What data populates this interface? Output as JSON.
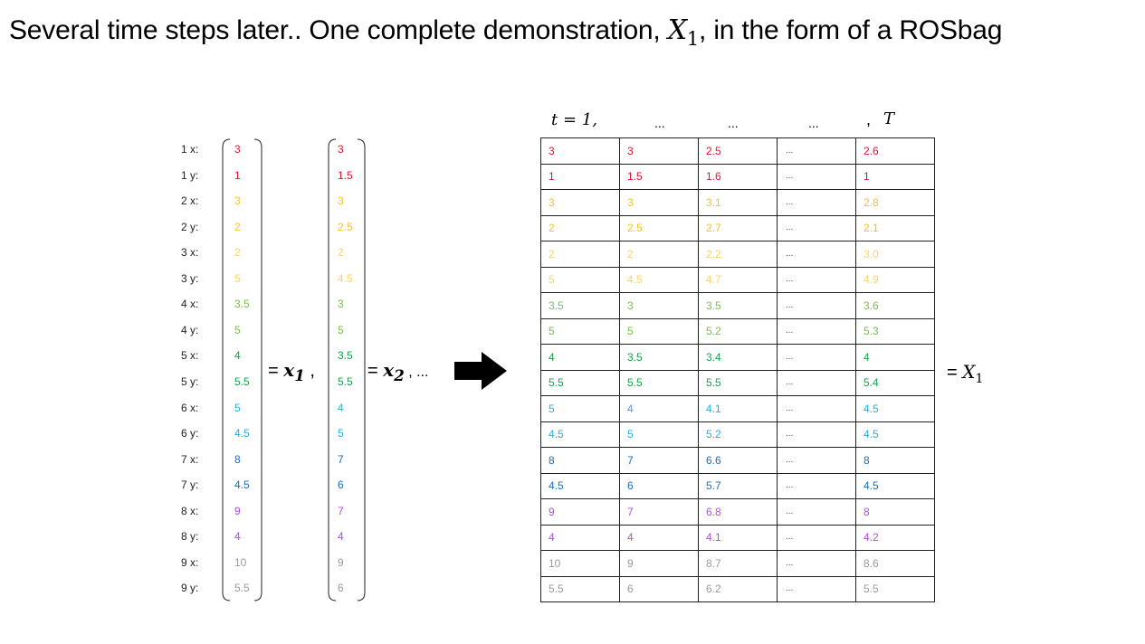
{
  "title": {
    "prefix": "Several time steps later.. One complete demonstration, ",
    "var": "X",
    "sub": "1",
    "suffix": ", in the form of a ROSbag"
  },
  "row_labels": [
    "1 x:",
    "1 y:",
    "2 x:",
    "2 y:",
    "3 x:",
    "3 y:",
    "4 x:",
    "4 y:",
    "5 x:",
    "5 y:",
    "6 x:",
    "6 y:",
    "7 x:",
    "7 y:",
    "8 x:",
    "8 y:",
    "9 x:",
    "9 y:"
  ],
  "row_colors": [
    "#e8112d",
    "#e8112d",
    "#f5c122",
    "#f5c122",
    "#f9d26a",
    "#f9d26a",
    "#7bbf48",
    "#7bbf48",
    "#17a34a",
    "#17a34a",
    "#1eb2e6",
    "#1eb2e6",
    "#1c6db5",
    "#1c6db5",
    "#b44ce8",
    "#b44ce8",
    "#9a9a9a",
    "#9a9a9a"
  ],
  "vector1": [
    "3",
    "1",
    "3",
    "2",
    "2",
    "5",
    "3.5",
    "5",
    "4",
    "5.5",
    "5",
    "4.5",
    "8",
    "4.5",
    "9",
    "4",
    "10",
    "5.5"
  ],
  "vector2": [
    "3",
    "1.5",
    "3",
    "2.5",
    "2",
    "4.5",
    "3",
    "5",
    "3.5",
    "5.5",
    "4",
    "5",
    "7",
    "6",
    "7",
    "4",
    "9",
    "6"
  ],
  "eq1": {
    "eq": "= ",
    "var": "x",
    "sub": "1",
    "tail": " ,"
  },
  "eq2": {
    "eq": "= ",
    "var": "x",
    "sub": "2",
    "tail": " , ..."
  },
  "eq_final": {
    "eq": "= ",
    "var": "X",
    "sub": "1"
  },
  "time_header": {
    "t_label": "t = 1,",
    "dots": "...",
    "comma": ",",
    "T": "T"
  },
  "matrix": [
    [
      "3",
      "3",
      "2.5",
      "...",
      "2.6"
    ],
    [
      "1",
      "1.5",
      "1.6",
      "...",
      "1"
    ],
    [
      "3",
      "3",
      "3.1",
      "...",
      "2.8"
    ],
    [
      "2",
      "2.5",
      "2.7",
      "...",
      "2.1"
    ],
    [
      "2",
      "2",
      "2.2",
      "...",
      "3.0"
    ],
    [
      "5",
      "4.5",
      "4.7",
      "...",
      "4.9"
    ],
    [
      "3.5",
      "3",
      "3.5",
      "...",
      "3.6"
    ],
    [
      "5",
      "5",
      "5.2",
      "...",
      "5.3"
    ],
    [
      "4",
      "3.5",
      "3.4",
      "...",
      "4"
    ],
    [
      "5.5",
      "5.5",
      "5.5",
      "...",
      "5.4"
    ],
    [
      "5",
      "4",
      "4.1",
      "...",
      "4.5"
    ],
    [
      "4.5",
      "5",
      "5.2",
      "...",
      "4.5"
    ],
    [
      "8",
      "7",
      "6.6",
      "...",
      "8"
    ],
    [
      "4.5",
      "6",
      "5.7",
      "...",
      "4.5"
    ],
    [
      "9",
      "7",
      "6.8",
      "...",
      "8"
    ],
    [
      "4",
      "4",
      "4.1",
      "...",
      "4.2"
    ],
    [
      "10",
      "9",
      "8.7",
      "...",
      "8.6"
    ],
    [
      "5.5",
      "6",
      "6.2",
      "...",
      "5.5"
    ]
  ]
}
